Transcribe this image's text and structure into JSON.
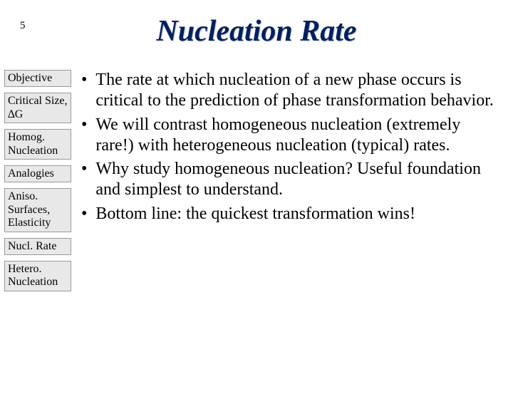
{
  "page_number": "5",
  "title": "Nucleation Rate",
  "sidebar": {
    "items": [
      "Objective",
      "Critical Size, ∆G",
      "Homog. Nucleation",
      "Analogies",
      "Aniso. Surfaces, Elasticity",
      "Nucl. Rate",
      "Hetero. Nucleation"
    ]
  },
  "bullets": [
    "The rate at which nucleation of a new phase occurs is critical to the prediction of phase transformation behavior.",
    "We will contrast homogeneous nucleation (extremely rare!) with heterogeneous nucleation (typical) rates.",
    "Why study homogeneous nucleation? Useful foundation and simplest to understand.",
    "Bottom line: the quickest transformation wins!"
  ],
  "colors": {
    "title": "#002060",
    "sidebar_bg": "#e8e8e8",
    "sidebar_border": "#999999",
    "text": "#000000",
    "background": "#ffffff"
  },
  "typography": {
    "title_fontsize": 42,
    "sidebar_fontsize": 16,
    "bullet_fontsize": 24,
    "font_family": "Times New Roman"
  }
}
